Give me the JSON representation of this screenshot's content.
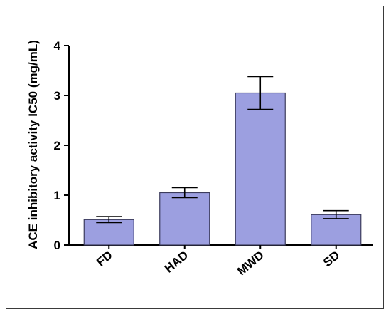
{
  "chart_data": {
    "type": "bar",
    "categories": [
      "FD",
      "HAD",
      "MWD",
      "SD"
    ],
    "values": [
      0.51,
      1.05,
      3.05,
      0.61
    ],
    "errors": [
      0.06,
      0.1,
      0.33,
      0.08
    ],
    "title": "",
    "xlabel": "",
    "ylabel": "ACE inhibitory activity IC50 (mg/mL)",
    "ylim": [
      0,
      4
    ],
    "yticks": [
      "0",
      "1",
      "2",
      "3",
      "4"
    ],
    "grid": false,
    "legend": "none",
    "bar_color": "#9c9fe0",
    "bar_edge_color": "#3c3c5c",
    "axis_color": "#000000"
  }
}
